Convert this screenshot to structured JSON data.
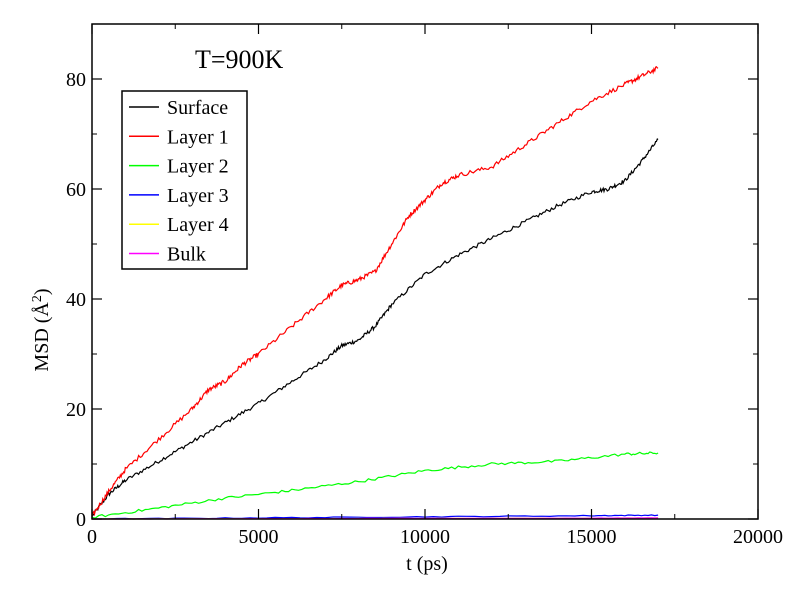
{
  "chart_data": {
    "type": "line",
    "annotation": "T=900K",
    "xlabel": "t (ps)",
    "ylabel_main": "MSD (",
    "ylabel_unit": "Å",
    "ylabel_exp": "2",
    "ylabel_close": ")",
    "xlim": [
      0,
      20000
    ],
    "ylim": [
      0,
      90
    ],
    "xticks": [
      0,
      5000,
      10000,
      15000,
      20000
    ],
    "xtick_labels": [
      "0",
      "5000",
      "10000",
      "15000",
      "20000"
    ],
    "yticks": [
      0,
      20,
      40,
      60,
      80
    ],
    "ytick_labels": [
      "0",
      "20",
      "40",
      "60",
      "80"
    ],
    "grid": false,
    "legend_position": "top-left",
    "series": [
      {
        "name": "Surface",
        "color": "#000000",
        "x": [
          0,
          500,
          1000,
          2000,
          3000,
          4000,
          5000,
          6000,
          7000,
          7500,
          8000,
          8500,
          9000,
          10000,
          11000,
          12000,
          13000,
          14000,
          15000,
          15500,
          16000,
          16500,
          17000
        ],
        "y": [
          0.5,
          4.5,
          7,
          10.5,
          14,
          17.5,
          21,
          25,
          29,
          31.5,
          32.5,
          35,
          39,
          44.5,
          48,
          51,
          54,
          57,
          59.5,
          60,
          61.5,
          65,
          69
        ]
      },
      {
        "name": "Layer 1",
        "color": "#ff0000",
        "x": [
          0,
          500,
          1000,
          2000,
          3000,
          3500,
          4000,
          4500,
          5000,
          6000,
          7000,
          7500,
          8000,
          8500,
          9000,
          9500,
          10000,
          10500,
          11000,
          12000,
          13000,
          14000,
          15000,
          16000,
          16500,
          17000
        ],
        "y": [
          0.5,
          5,
          9,
          14.5,
          20,
          23.5,
          25,
          28,
          30,
          35,
          40,
          42.5,
          43.5,
          45,
          50,
          55,
          58,
          61,
          62.5,
          64,
          68,
          72,
          76,
          79,
          80.5,
          82
        ]
      },
      {
        "name": "Layer 2",
        "color": "#00ff00",
        "x": [
          0,
          2000,
          4000,
          6000,
          8000,
          10000,
          12000,
          14000,
          16000,
          17000
        ],
        "y": [
          0.3,
          2,
          3.8,
          5.2,
          6.8,
          8.8,
          10,
          10.5,
          11.8,
          12
        ]
      },
      {
        "name": "Layer 3",
        "color": "#0000ff",
        "x": [
          0,
          5000,
          10000,
          15000,
          17000
        ],
        "y": [
          0,
          0.2,
          0.4,
          0.6,
          0.7
        ]
      },
      {
        "name": "Layer 4",
        "color": "#ffff00",
        "x": [
          0,
          5000,
          10000,
          15000,
          17000
        ],
        "y": [
          0,
          0.05,
          0.1,
          0.15,
          0.2
        ]
      },
      {
        "name": "Bulk",
        "color": "#ff00ff",
        "x": [
          0,
          5000,
          10000,
          15000,
          17000
        ],
        "y": [
          0,
          0.05,
          0.1,
          0.15,
          0.2
        ]
      }
    ]
  }
}
